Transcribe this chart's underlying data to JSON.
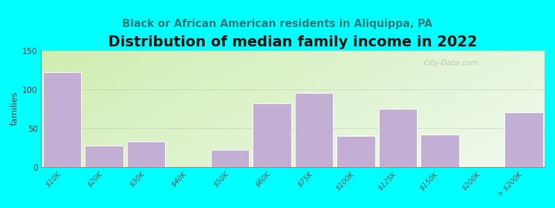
{
  "title": "Distribution of median family income in 2022",
  "subtitle": "Black or African American residents in Aliquippa, PA",
  "ylabel": "families",
  "categories": [
    "$10K",
    "$20K",
    "$30K",
    "$40K",
    "$50K",
    "$60K",
    "$75K",
    "$100K",
    "$125K",
    "$150K",
    "$200K",
    "> $200K"
  ],
  "values": [
    122,
    28,
    33,
    0,
    22,
    82,
    95,
    40,
    75,
    42,
    0,
    70
  ],
  "bar_color": "#c4afd4",
  "figure_bg": "#00ffff",
  "ylim": [
    0,
    150
  ],
  "yticks": [
    0,
    50,
    100,
    150
  ],
  "title_fontsize": 15,
  "subtitle_fontsize": 11,
  "ylabel_fontsize": 9,
  "watermark": "City-Data.com",
  "bg_left_color": "#d0edb0",
  "bg_right_color": "#f0faf0"
}
